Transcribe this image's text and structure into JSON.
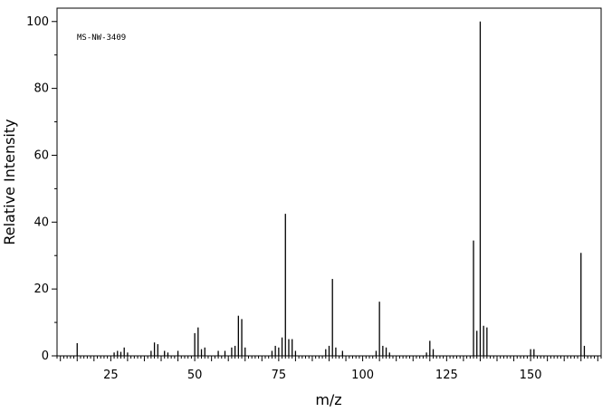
{
  "chart_data": {
    "type": "bar",
    "title": "",
    "annotation": "MS-NW-3409",
    "xlabel": "m/z",
    "ylabel": "Relative Intensity",
    "xlim": [
      9,
      171
    ],
    "ylim": [
      0,
      104
    ],
    "xticks": [
      25,
      50,
      75,
      100,
      125,
      150
    ],
    "yticks": [
      0,
      20,
      40,
      60,
      80,
      100
    ],
    "grid": false,
    "legend": "none",
    "series": [
      {
        "x": [
          15,
          26,
          27,
          28,
          29,
          30,
          37,
          38,
          39,
          41,
          42,
          45,
          50,
          51,
          52,
          53,
          57,
          59,
          61,
          62,
          63,
          64,
          65,
          73,
          74,
          75,
          76,
          77,
          78,
          79,
          80,
          89,
          90,
          91,
          92,
          94,
          104,
          105,
          106,
          107,
          108,
          119,
          120,
          121,
          133,
          134,
          135,
          136,
          137,
          150,
          151,
          165,
          166
        ],
        "values": [
          3.8,
          1.0,
          1.5,
          1.2,
          2.5,
          1.0,
          1.5,
          4.0,
          3.5,
          1.5,
          1.0,
          1.5,
          6.8,
          8.5,
          2.0,
          2.5,
          1.5,
          1.5,
          2.5,
          3.0,
          12.0,
          11.0,
          2.5,
          1.5,
          3.0,
          2.5,
          5.5,
          42.5,
          5.0,
          5.0,
          1.5,
          2.0,
          3.0,
          23.0,
          2.5,
          1.5,
          1.5,
          16.2,
          3.0,
          2.5,
          1.0,
          1.0,
          4.5,
          2.0,
          34.5,
          7.5,
          100,
          9.0,
          8.5,
          2.0,
          2.0,
          30.8,
          3.0
        ]
      }
    ]
  }
}
